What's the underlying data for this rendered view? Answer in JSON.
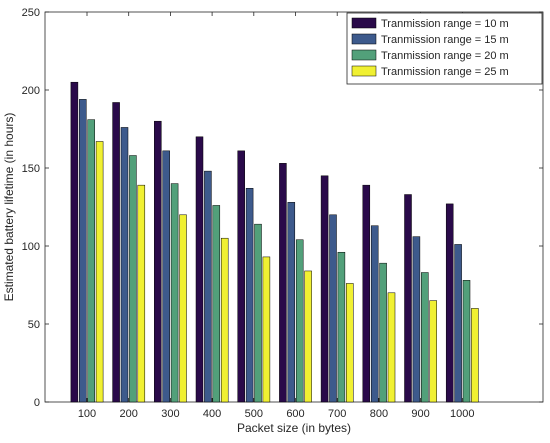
{
  "chart_data": {
    "type": "bar",
    "xlabel": "Packet size (in bytes)",
    "ylabel": "Estimated battery lifetime (in hours)",
    "categories": [
      "100",
      "200",
      "300",
      "400",
      "500",
      "600",
      "700",
      "800",
      "900",
      "1000"
    ],
    "ylim": [
      0,
      250
    ],
    "yticks": [
      "0",
      "50",
      "100",
      "150",
      "200",
      "250"
    ],
    "grid": false,
    "legend_position": "top-right",
    "series": [
      {
        "name": "Tranmission range = 10 m",
        "color": "#2a0a4a",
        "values": [
          205,
          192,
          180,
          170,
          161,
          153,
          145,
          139,
          133,
          127
        ]
      },
      {
        "name": "Tranmission range = 15 m",
        "color": "#3d5a8c",
        "values": [
          194,
          176,
          161,
          148,
          137,
          128,
          120,
          113,
          106,
          101
        ]
      },
      {
        "name": "Tranmission range = 20 m",
        "color": "#52a07a",
        "values": [
          181,
          158,
          140,
          126,
          114,
          104,
          96,
          89,
          83,
          78
        ]
      },
      {
        "name": "Tranmission range = 25 m",
        "color": "#f0f032",
        "values": [
          167,
          139,
          120,
          105,
          93,
          84,
          76,
          70,
          65,
          60
        ]
      }
    ]
  }
}
